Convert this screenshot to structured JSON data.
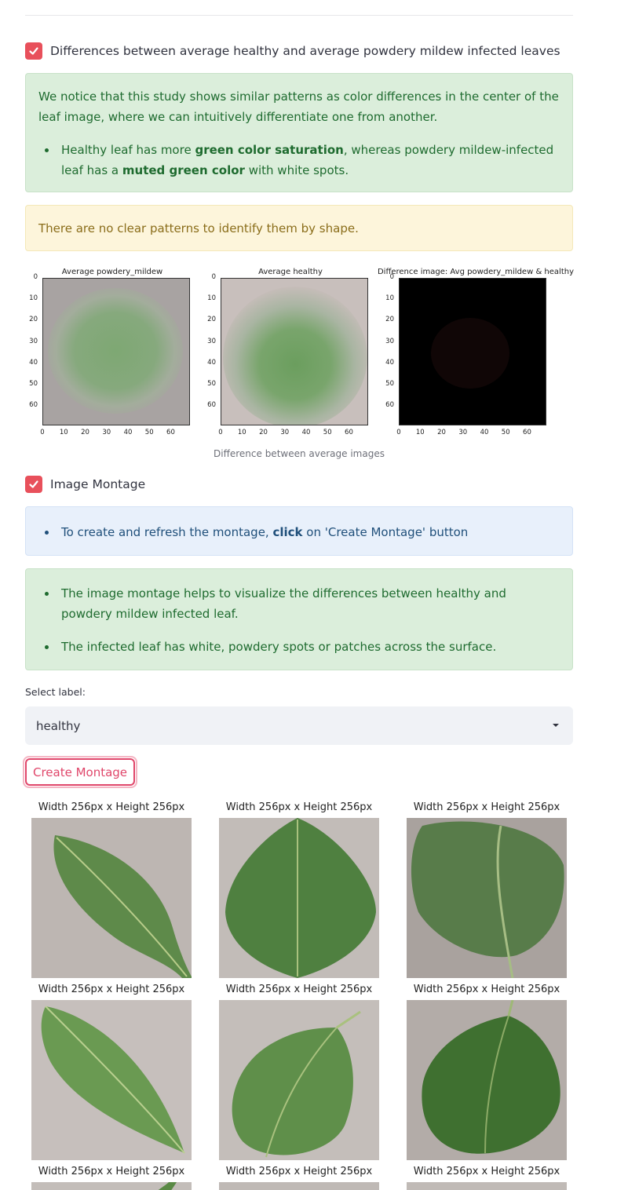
{
  "section_differences": {
    "checkbox_label": "Differences between average healthy and average powdery mildew infected leaves",
    "success_text": "We notice that this study shows similar patterns as color differences in the center of the leaf image, where we can intuitively differentiate one from another.",
    "bullet_prefix": "Healthy leaf has more ",
    "bullet_bold1": "green color saturation",
    "bullet_mid": ", whereas powdery mildew-infected leaf has a ",
    "bullet_bold2": "muted green color",
    "bullet_suffix": " with white spots.",
    "warning_text": "There are no clear patterns to identify them by shape."
  },
  "figure": {
    "plots": [
      {
        "title": "Average powdery_mildew"
      },
      {
        "title": "Average healthy"
      },
      {
        "title": "Difference image: Avg powdery_mildew & healthy"
      }
    ],
    "yticks": [
      "0",
      "10",
      "20",
      "30",
      "40",
      "50",
      "60"
    ],
    "xticks": [
      "0",
      "10",
      "20",
      "30",
      "40",
      "50",
      "60"
    ],
    "caption": "Difference between average images"
  },
  "section_montage": {
    "checkbox_label": "Image Montage",
    "info_prefix": "To create and refresh the montage, ",
    "info_bold": "click",
    "info_suffix": " on 'Create Montage' button",
    "success_bullet1": "The image montage helps to visualize the differences between healthy and powdery mildew infected leaf.",
    "success_bullet2": "The infected leaf has white, powdery spots or patches across the surface.",
    "select_label": "Select label:",
    "select_value": "healthy",
    "button_label": "Create Montage",
    "image_titles": [
      "Width 256px x Height 256px",
      "Width 256px x Height 256px",
      "Width 256px x Height 256px",
      "Width 256px x Height 256px",
      "Width 256px x Height 256px",
      "Width 256px x Height 256px",
      "Width 256px x Height 256px",
      "Width 256px x Height 256px",
      "Width 256px x Height 256px"
    ]
  },
  "colors": {
    "accent": "#e8505b",
    "success_bg": "#dbeedb",
    "warning_bg": "#fdf5db",
    "info_bg": "#e8f0fb"
  }
}
